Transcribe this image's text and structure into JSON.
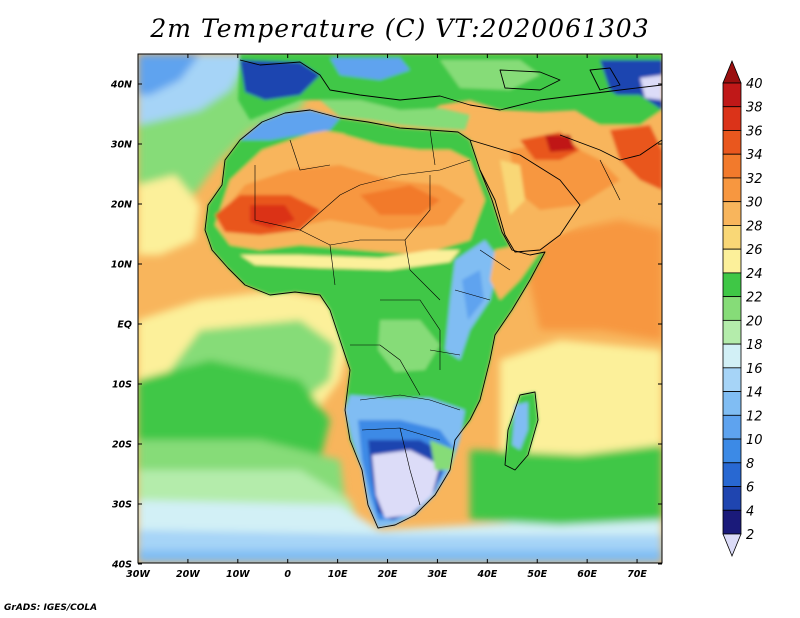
{
  "title": "2m Temperature (C) VT:2020061303",
  "credit": "GrADS: IGES/COLA",
  "map": {
    "variable": "2m Temperature",
    "units": "C",
    "valid_time": "2020061303",
    "lon_range": [
      -30,
      75
    ],
    "lat_range": [
      -40,
      45
    ],
    "lat_ticks": [
      "40N",
      "30N",
      "20N",
      "10N",
      "EQ",
      "10S",
      "20S",
      "30S",
      "40S"
    ],
    "lon_ticks": [
      "30W",
      "20W",
      "10W",
      "0",
      "10E",
      "20E",
      "30E",
      "40E",
      "50E",
      "60E",
      "70E"
    ]
  },
  "colorbar": {
    "levels": [
      "2",
      "4",
      "6",
      "8",
      "10",
      "12",
      "14",
      "16",
      "18",
      "20",
      "22",
      "24",
      "26",
      "28",
      "30",
      "32",
      "34",
      "36",
      "38",
      "40"
    ],
    "colors": [
      "#1a1a7a",
      "#1f45b0",
      "#2868d2",
      "#3c8ae6",
      "#5ea3ef",
      "#80bdf3",
      "#a6d4f7",
      "#d2f0f6",
      "#b4ecab",
      "#86dc78",
      "#3fc746",
      "#fcf09a",
      "#f9d776",
      "#f8b55c",
      "#f79740",
      "#f27a2c",
      "#e9571e",
      "#db3319",
      "#c01818"
    ],
    "under_color": "#dcdcf8",
    "over_color": "#9a0f0f"
  }
}
